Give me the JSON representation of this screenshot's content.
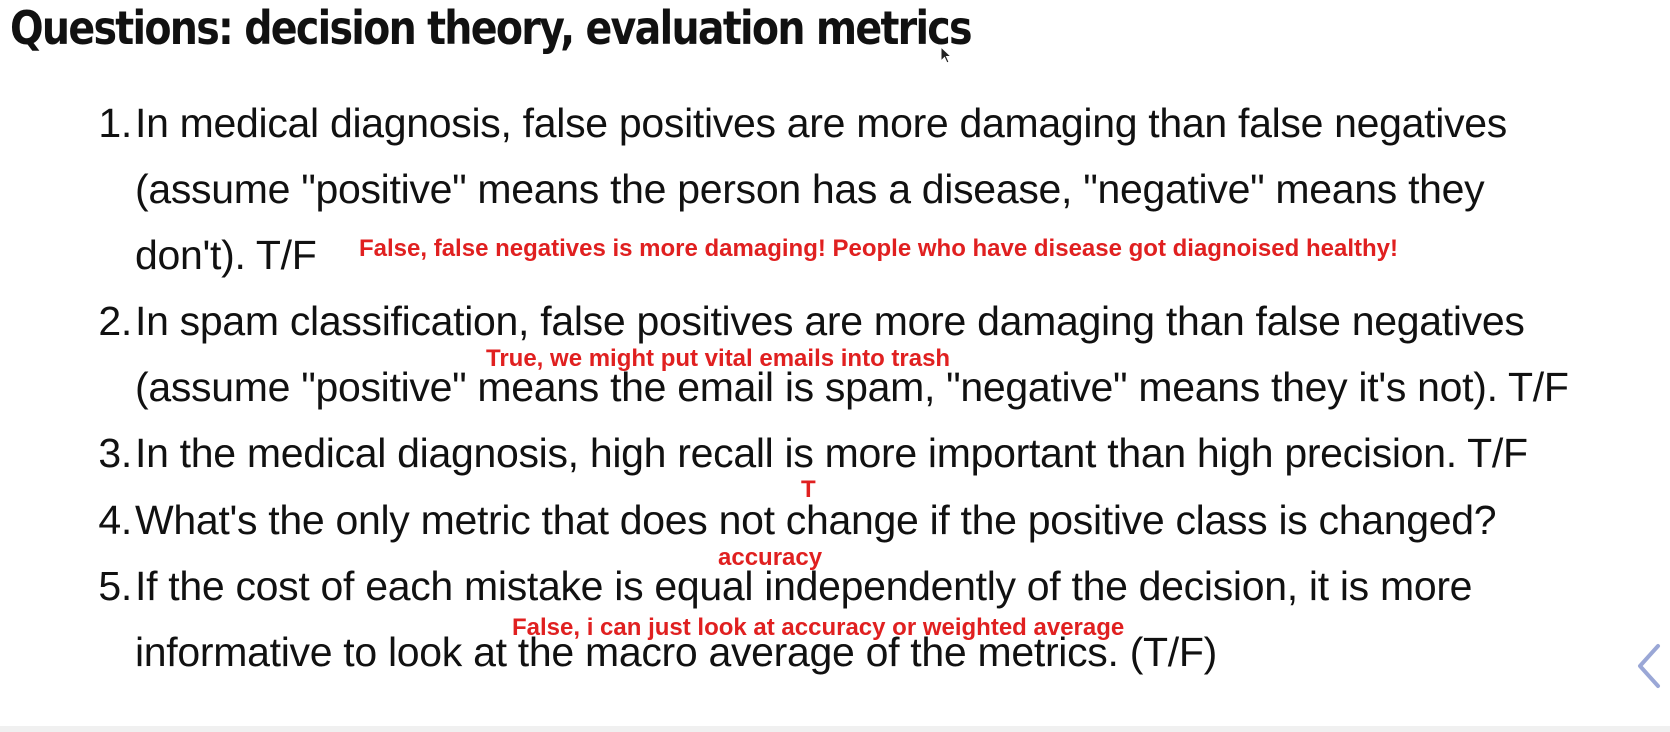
{
  "slide": {
    "title": "Questions: decision theory, evaluation metrics"
  },
  "questions": [
    {
      "number": "1.",
      "lines": [
        "In medical diagnosis, false positives are more damaging than false negatives",
        "(assume \"positive\" means the person has a disease, \"negative\" means they",
        "don't). T/F"
      ],
      "answer": "False, false negatives is more damaging! People who have disease got diagnoised healthy!"
    },
    {
      "number": "2.",
      "lines": [
        "In spam classification, false positives are more damaging than false negatives",
        "(assume \"positive\" means the email is spam, \"negative\" means they it's not). T/F"
      ],
      "answer": "True, we might put vital emails into trash"
    },
    {
      "number": "3.",
      "lines": [
        "In the medical diagnosis, high recall is more important than high precision. T/F"
      ],
      "answer": "T"
    },
    {
      "number": "4.",
      "lines": [
        "What's the only metric that does not change if the positive class is changed?"
      ],
      "answer": "accuracy"
    },
    {
      "number": "5.",
      "lines": [
        "If the cost of each mistake is equal independently of the decision, it is more",
        "informative to look at the macro average of the metrics. (T/F)"
      ],
      "answer": "False, i can just look at accuracy or weighted average"
    }
  ],
  "icons": {
    "cursor": "mouse-pointer-icon",
    "nav": "chevron-left-icon"
  },
  "colors": {
    "text": "#111111",
    "answer": "#e02020",
    "nav_arrow": "#9aa7d6"
  }
}
